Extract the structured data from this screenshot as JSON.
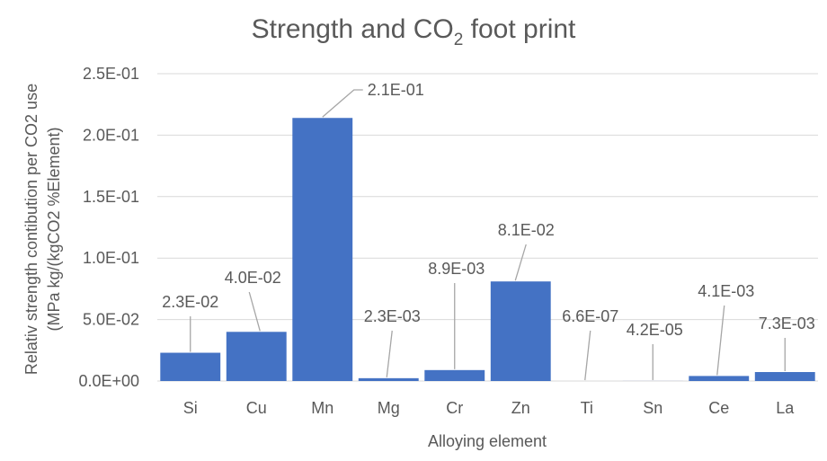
{
  "chart_data": {
    "type": "bar",
    "title_main": "Strength and CO",
    "title_sub": "2",
    "title_end": " foot print",
    "xlabel": "Alloying element",
    "ylabel_line1": "Relativ strength contibution per CO2 use",
    "ylabel_line2": "(MPa kg/(kgCO2 %Element)",
    "ylim": [
      0,
      0.25
    ],
    "yticks": [
      0,
      0.05,
      0.1,
      0.15,
      0.2,
      0.25
    ],
    "ytick_labels": [
      "0.0E+00",
      "5.0E-02",
      "1.0E-01",
      "1.5E-01",
      "2.0E-01",
      "2.5E-01"
    ],
    "categories": [
      "Si",
      "Cu",
      "Mn",
      "Mg",
      "Cr",
      "Zn",
      "Ti",
      "Sn",
      "Ce",
      "La"
    ],
    "values": [
      0.023,
      0.04,
      0.214,
      0.0023,
      0.0089,
      0.081,
      6.6e-07,
      4.2e-05,
      0.0041,
      0.0073
    ],
    "data_labels": [
      "2.3E-02",
      "4.0E-02",
      "2.1E-01",
      "2.3E-03",
      "8.9E-03",
      "8.1E-02",
      "6.6E-07",
      "4.2E-05",
      "4.1E-03",
      "7.3E-03"
    ],
    "bar_color": "#4472c4",
    "gridlines": true
  }
}
